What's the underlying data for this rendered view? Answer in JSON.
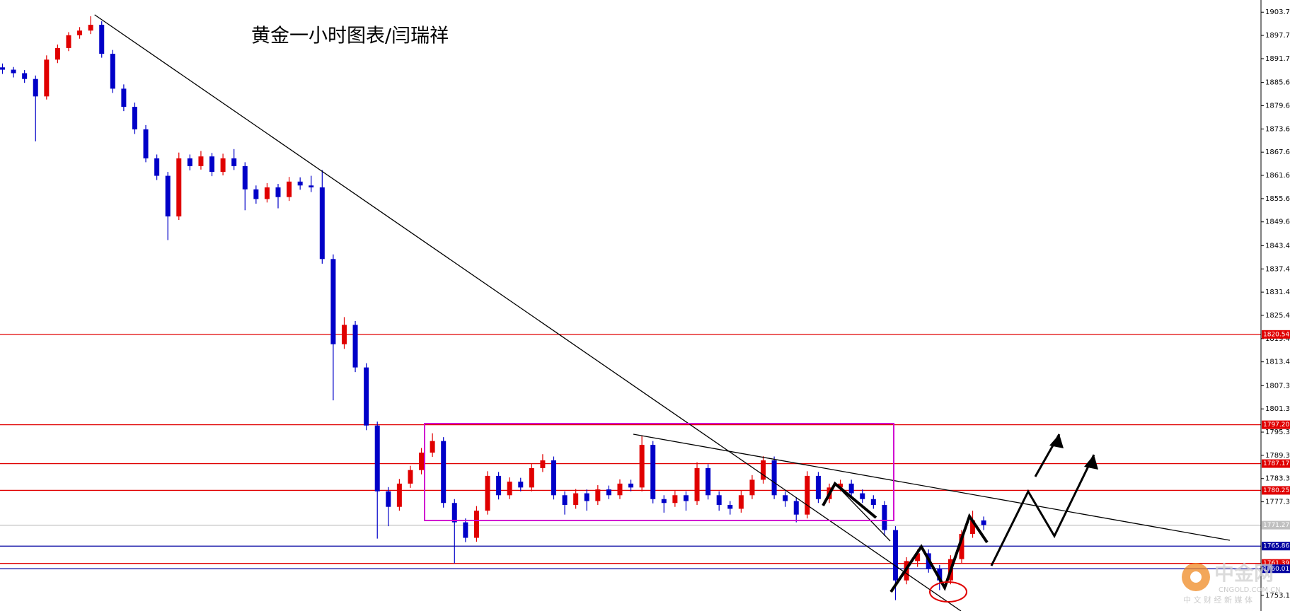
{
  "chart_data": {
    "type": "candlestick",
    "title": "黄金一小时图表/闫瑞祥",
    "up_color": "#e00000",
    "down_color": "#0000c8",
    "ylim": [
      1749.1,
      1906.9
    ],
    "yticks": [
      1903.75,
      1897.75,
      1891.75,
      {
        "value": 1885.6,
        "label": "1885.60"
      },
      {
        "value": 1879.6,
        "label": "1879.60"
      },
      {
        "value": 1873.6,
        "label": "1873.60"
      },
      {
        "value": 1867.6,
        "label": "1867.60"
      },
      {
        "value": 1861.6,
        "label": "1861.60"
      },
      {
        "value": 1855.6,
        "label": "1855.60"
      },
      {
        "value": 1849.6,
        "label": "1849.60"
      },
      1843.45,
      1837.45,
      1831.45,
      1825.45,
      1819.45,
      1813.45,
      {
        "value": 1807.3,
        "label": "1807.30"
      },
      {
        "value": 1801.3,
        "label": "1801.30"
      },
      {
        "value": 1795.3,
        "label": "1795.30"
      },
      {
        "value": 1789.3,
        "label": "1789.30"
      },
      {
        "value": 1783.3,
        "label": "1783.30"
      },
      {
        "value": 1777.3,
        "label": "1777.30"
      },
      1753.15
    ],
    "levels": [
      {
        "value": 1820.54,
        "label": "1820.54",
        "color": "#e00000"
      },
      {
        "value": 1797.2,
        "label": "1797.20",
        "color": "#e00000"
      },
      {
        "value": 1787.17,
        "label": "1787.17",
        "color": "#e00000"
      },
      {
        "value": 1780.25,
        "label": "1780.25",
        "color": "#e00000"
      },
      {
        "value": 1771.27,
        "label": "1771.27",
        "color": "#c0c0c0"
      },
      {
        "value": 1765.86,
        "label": "1765.86",
        "color": "#0000a0"
      },
      {
        "value": 1761.39,
        "label": "1761.39",
        "color": "#e00000"
      },
      {
        "value": 1760.01,
        "label": "1760.01",
        "color": "#0000a0"
      }
    ],
    "candles": [
      [
        1889.5,
        1890.5,
        1887.8,
        1888.9
      ],
      [
        1888.9,
        1889.6,
        1886.9,
        1888.0
      ],
      [
        1888.0,
        1888.8,
        1885.5,
        1886.5
      ],
      [
        1886.5,
        1887.4,
        1870.4,
        1882.0
      ],
      [
        1882.0,
        1892.6,
        1881.2,
        1891.5
      ],
      [
        1891.5,
        1895.4,
        1890.6,
        1894.5
      ],
      [
        1894.5,
        1898.6,
        1893.7,
        1897.8
      ],
      [
        1897.8,
        1899.9,
        1896.9,
        1899.0
      ],
      [
        1899.0,
        1902.7,
        1898.1,
        1900.5
      ],
      [
        1900.5,
        1901.4,
        1892.0,
        1893.0
      ],
      [
        1893.0,
        1894.0,
        1882.9,
        1884.0
      ],
      [
        1884.0,
        1885.1,
        1878.2,
        1879.3
      ],
      [
        1879.3,
        1880.4,
        1872.3,
        1873.5
      ],
      [
        1873.5,
        1874.6,
        1865.0,
        1866.0
      ],
      [
        1866.0,
        1867.0,
        1860.4,
        1861.5
      ],
      [
        1861.5,
        1862.5,
        1844.9,
        1851.0
      ],
      [
        1851.0,
        1867.5,
        1850.1,
        1866.0
      ],
      [
        1866.0,
        1867.0,
        1862.9,
        1864.0
      ],
      [
        1864.0,
        1867.9,
        1863.1,
        1866.5
      ],
      [
        1866.5,
        1867.4,
        1861.4,
        1862.5
      ],
      [
        1862.5,
        1867.2,
        1861.6,
        1866.0
      ],
      [
        1866.0,
        1868.4,
        1863.0,
        1864.0
      ],
      [
        1864.0,
        1865.0,
        1852.6,
        1858.0
      ],
      [
        1858.0,
        1859.0,
        1854.3,
        1855.5
      ],
      [
        1855.5,
        1859.6,
        1854.6,
        1858.5
      ],
      [
        1858.5,
        1859.4,
        1853.1,
        1856.0
      ],
      [
        1856.0,
        1861.2,
        1855.0,
        1860.0
      ],
      [
        1860.0,
        1861.1,
        1857.9,
        1859.0
      ],
      [
        1859.0,
        1861.5,
        1857.3,
        1858.5
      ],
      [
        1858.5,
        1863.0,
        1838.8,
        1840.0
      ],
      [
        1840.0,
        1841.2,
        1803.5,
        1818.0
      ],
      [
        1818.0,
        1825.0,
        1816.8,
        1823.0
      ],
      [
        1823.0,
        1824.0,
        1810.8,
        1812.0
      ],
      [
        1812.0,
        1813.1,
        1795.8,
        1797.0
      ],
      [
        1797.0,
        1798.0,
        1767.8,
        1780.0
      ],
      [
        1780.0,
        1781.1,
        1771.0,
        1776.0
      ],
      [
        1776.0,
        1783.2,
        1775.0,
        1782.0
      ],
      [
        1782.0,
        1786.6,
        1780.9,
        1785.5
      ],
      [
        1785.5,
        1791.2,
        1784.4,
        1790.0
      ],
      [
        1790.0,
        1795.0,
        1788.9,
        1793.0
      ],
      [
        1793.0,
        1794.0,
        1775.8,
        1777.0
      ],
      [
        1777.0,
        1778.0,
        1761.4,
        1772.0
      ],
      [
        1772.0,
        1773.0,
        1766.9,
        1768.0
      ],
      [
        1768.0,
        1776.2,
        1767.0,
        1775.0
      ],
      [
        1775.0,
        1785.2,
        1774.0,
        1784.0
      ],
      [
        1784.0,
        1785.0,
        1777.9,
        1779.0
      ],
      [
        1779.0,
        1783.6,
        1778.0,
        1782.5
      ],
      [
        1782.5,
        1783.5,
        1780.0,
        1781.0
      ],
      [
        1781.0,
        1787.2,
        1780.0,
        1786.0
      ],
      [
        1786.0,
        1789.6,
        1785.0,
        1788.0
      ],
      [
        1788.0,
        1789.0,
        1777.9,
        1779.0
      ],
      [
        1779.0,
        1780.0,
        1774.0,
        1776.5
      ],
      [
        1776.5,
        1780.6,
        1775.5,
        1779.5
      ],
      [
        1779.5,
        1780.5,
        1775.0,
        1777.5
      ],
      [
        1777.5,
        1781.6,
        1776.5,
        1780.5
      ],
      [
        1780.5,
        1781.5,
        1778.0,
        1779.0
      ],
      [
        1779.0,
        1783.1,
        1778.0,
        1782.0
      ],
      [
        1782.0,
        1783.0,
        1780.0,
        1781.0
      ],
      [
        1781.0,
        1794.4,
        1780.0,
        1792.0
      ],
      [
        1792.0,
        1793.0,
        1776.9,
        1778.0
      ],
      [
        1778.0,
        1779.0,
        1774.5,
        1777.0
      ],
      [
        1777.0,
        1780.1,
        1776.0,
        1779.0
      ],
      [
        1779.0,
        1780.0,
        1775.0,
        1777.5
      ],
      [
        1777.5,
        1787.5,
        1776.5,
        1786.0
      ],
      [
        1786.0,
        1787.0,
        1777.9,
        1779.0
      ],
      [
        1779.0,
        1780.0,
        1775.0,
        1776.5
      ],
      [
        1776.5,
        1777.5,
        1774.0,
        1775.5
      ],
      [
        1775.5,
        1780.2,
        1774.5,
        1779.0
      ],
      [
        1779.0,
        1784.2,
        1778.0,
        1783.0
      ],
      [
        1783.0,
        1789.1,
        1782.0,
        1788.0
      ],
      [
        1788.0,
        1789.0,
        1778.0,
        1779.0
      ],
      [
        1779.0,
        1780.0,
        1776.0,
        1777.5
      ],
      [
        1777.5,
        1778.5,
        1772.0,
        1774.0
      ],
      [
        1774.0,
        1785.2,
        1773.0,
        1784.0
      ],
      [
        1784.0,
        1785.0,
        1777.0,
        1778.0
      ],
      [
        1778.0,
        1782.0,
        1777.0,
        1781.0
      ],
      [
        1781.0,
        1783.0,
        1780.0,
        1782.0
      ],
      [
        1782.0,
        1783.0,
        1778.5,
        1779.5
      ],
      [
        1779.5,
        1780.5,
        1777.0,
        1778.0
      ],
      [
        1778.0,
        1779.0,
        1775.5,
        1776.5
      ],
      [
        1776.5,
        1777.5,
        1768.5,
        1770.0
      ],
      [
        1770.0,
        1771.0,
        1751.9,
        1757.0
      ],
      [
        1757.0,
        1763.0,
        1756.0,
        1762.0
      ],
      [
        1762.0,
        1765.0,
        1760.5,
        1764.0
      ],
      [
        1764.0,
        1765.0,
        1759.0,
        1760.0
      ],
      [
        1760.0,
        1761.0,
        1754.5,
        1757.0
      ],
      [
        1757.0,
        1763.5,
        1756.0,
        1762.5
      ],
      [
        1762.5,
        1770.0,
        1761.5,
        1769.0
      ],
      [
        1769.0,
        1775.0,
        1768.0,
        1772.5
      ],
      [
        1772.5,
        1773.5,
        1770.0,
        1771.3
      ]
    ]
  },
  "watermark": {
    "name": "中金网",
    "url": "CNGOLD.COM.CN",
    "slogan": "中 文 财 经 新 媒 体"
  }
}
